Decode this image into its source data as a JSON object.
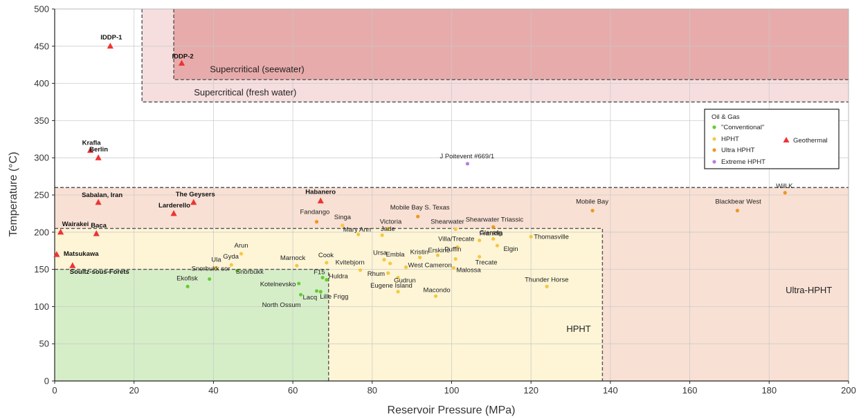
{
  "chart_data": {
    "type": "scatter",
    "title": "",
    "xlabel": "Reservoir Pressure (MPa)",
    "ylabel": "Temperature (°C)",
    "xlim": [
      0,
      200
    ],
    "ylim": [
      0,
      500
    ],
    "xticks": [
      0,
      20,
      40,
      60,
      80,
      100,
      120,
      140,
      160,
      180,
      200
    ],
    "yticks": [
      0,
      50,
      100,
      150,
      200,
      250,
      300,
      350,
      400,
      450,
      500
    ],
    "grid": true,
    "colors": {
      "conventional": "#66cc33",
      "hpht": "#f5c842",
      "ultra_hpht": "#f0961e",
      "extreme_hpht": "#b57edc",
      "geothermal": "#ee3333",
      "region_conventional": "#d6eec8",
      "region_hpht": "#fdf5d6",
      "region_ultra_hpht": "#f8e0d4",
      "region_fresh": "#f6dede",
      "region_seawater": "#e8abab"
    },
    "regions": [
      {
        "name": "Ultra-HPHT",
        "x": [
          0,
          200
        ],
        "y": [
          0,
          260
        ],
        "label_at": [
          190,
          118
        ]
      },
      {
        "name": "HPHT",
        "x": [
          0,
          138
        ],
        "y": [
          0,
          205
        ],
        "label_at": [
          132,
          66
        ]
      },
      {
        "name": "Conventional",
        "x": [
          0,
          69
        ],
        "y": [
          0,
          150
        ],
        "label_at": null
      },
      {
        "name": "Supercritical (fresh water)",
        "x": [
          22,
          200
        ],
        "y": [
          375,
          500
        ],
        "label_at": [
          48,
          384
        ]
      },
      {
        "name": "Supercritical (seewater)",
        "x": [
          30,
          200
        ],
        "y": [
          405,
          500
        ],
        "label_at": [
          51,
          415
        ]
      }
    ],
    "legend": {
      "title": "Oil & Gas",
      "position": "top-right",
      "items": [
        "\"Conventional\"",
        "HPHT",
        "Ultra HPHT",
        "Extreme HPHT",
        "Geothermal"
      ]
    },
    "series": [
      {
        "name": "\"Conventional\"",
        "marker": "circle",
        "points": [
          {
            "label": "Ekofisk",
            "x": 33.5,
            "y": 127
          },
          {
            "label": "Snorbukk sor",
            "x": 39,
            "y": 137
          },
          {
            "label": "Snorbukk",
            "x": 46,
            "y": 148
          },
          {
            "label": "Kotelnevsko",
            "x": 61.5,
            "y": 131
          },
          {
            "label": "North Ossum",
            "x": 62,
            "y": 116
          },
          {
            "label": "F15",
            "x": 67.5,
            "y": 139
          },
          {
            "label": "Huldra",
            "x": 68.5,
            "y": 136
          },
          {
            "label": "Lille Frigg",
            "x": 67,
            "y": 120
          },
          {
            "label": "Lacq",
            "x": 66,
            "y": 121
          }
        ]
      },
      {
        "name": "HPHT",
        "marker": "circle",
        "points": [
          {
            "label": "Ula",
            "x": 40.5,
            "y": 152
          },
          {
            "label": "Gyda",
            "x": 44.5,
            "y": 156
          },
          {
            "label": "Arun",
            "x": 47,
            "y": 171
          },
          {
            "label": "Marnock",
            "x": 61,
            "y": 155
          },
          {
            "label": "Cook",
            "x": 68.5,
            "y": 159
          },
          {
            "label": "Kvitebjorn",
            "x": 77,
            "y": 149
          },
          {
            "label": "Singa",
            "x": 72.5,
            "y": 209
          },
          {
            "label": "Mary Ann",
            "x": 76.5,
            "y": 197
          },
          {
            "label": "Victoria",
            "x": 84,
            "y": 205
          },
          {
            "label": "Jade",
            "x": 82.5,
            "y": 196
          },
          {
            "label": "Ursa",
            "x": 83,
            "y": 163
          },
          {
            "label": "Embla",
            "x": 84.5,
            "y": 158
          },
          {
            "label": "Rhum",
            "x": 84,
            "y": 145
          },
          {
            "label": "Gudrun",
            "x": 86.5,
            "y": 139
          },
          {
            "label": "West Cameron",
            "x": 88.5,
            "y": 153
          },
          {
            "label": "Eugene Island",
            "x": 86.5,
            "y": 120
          },
          {
            "label": "Macondo",
            "x": 96,
            "y": 114
          },
          {
            "label": "Kristin",
            "x": 92,
            "y": 166
          },
          {
            "label": "Erskine",
            "x": 96.5,
            "y": 169
          },
          {
            "label": "Puffin",
            "x": 101,
            "y": 164
          },
          {
            "label": "Malossa",
            "x": 100.5,
            "y": 152
          },
          {
            "label": "Villa/Trecate",
            "x": 101.5,
            "y": 180
          },
          {
            "label": "Shearwater",
            "x": 101,
            "y": 204
          },
          {
            "label": "Glenelg",
            "x": 107,
            "y": 189
          },
          {
            "label": "Franklin",
            "x": 110.5,
            "y": 191
          },
          {
            "label": "Elgin",
            "x": 111.5,
            "y": 182
          },
          {
            "label": "Trecate",
            "x": 107,
            "y": 167
          },
          {
            "label": "Thomasville",
            "x": 120,
            "y": 194
          },
          {
            "label": "Thunder Horse",
            "x": 124,
            "y": 127
          }
        ]
      },
      {
        "name": "Ultra HPHT",
        "marker": "circle",
        "points": [
          {
            "label": "Fandango",
            "x": 66,
            "y": 214
          },
          {
            "label": "Mobile Bay S. Texas",
            "x": 91.5,
            "y": 221
          },
          {
            "label": "Shearwater Triassic",
            "x": 110.5,
            "y": 207
          },
          {
            "label": "Mobile Bay",
            "x": 135.5,
            "y": 229
          },
          {
            "label": "Blackbear West",
            "x": 172,
            "y": 229
          },
          {
            "label": "Will K",
            "x": 184,
            "y": 253
          }
        ]
      },
      {
        "name": "Extreme HPHT",
        "marker": "circle",
        "points": [
          {
            "label": "J Poitevent #669/1",
            "x": 104,
            "y": 292
          }
        ]
      },
      {
        "name": "Geothermal",
        "marker": "triangle",
        "points": [
          {
            "label": "IDDP-1",
            "x": 14,
            "y": 450
          },
          {
            "label": "IDDP-2",
            "x": 32,
            "y": 427
          },
          {
            "label": "Krafla",
            "x": 9,
            "y": 310
          },
          {
            "label": "Berlin",
            "x": 11,
            "y": 300
          },
          {
            "label": "Sabalan, Iran",
            "x": 11,
            "y": 240
          },
          {
            "label": "The Geysers",
            "x": 35,
            "y": 240
          },
          {
            "label": "Larderello",
            "x": 30,
            "y": 225
          },
          {
            "label": "Habanero",
            "x": 67,
            "y": 242
          },
          {
            "label": "Wairakei",
            "x": 1.5,
            "y": 200
          },
          {
            "label": "Baca",
            "x": 10.5,
            "y": 198
          },
          {
            "label": "Matsukawa",
            "x": 0.5,
            "y": 170
          },
          {
            "label": "Soultz-sous-Forets",
            "x": 4.5,
            "y": 155
          }
        ]
      }
    ]
  }
}
